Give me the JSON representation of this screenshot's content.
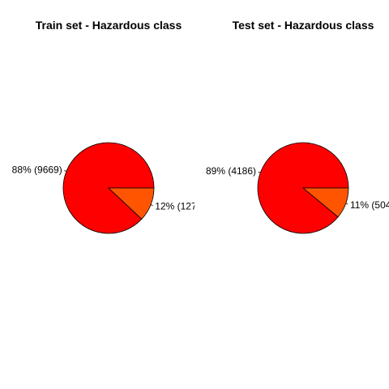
{
  "chart_data": [
    {
      "type": "pie",
      "title": "Train set - Hazardous class",
      "slices": [
        {
          "label": "88% (9669)",
          "percent": 88,
          "count": 9669,
          "color": "#FF0000"
        },
        {
          "label": "12% (127",
          "percent": 12,
          "count": null,
          "color": "#FF5500"
        }
      ]
    },
    {
      "type": "pie",
      "title": "Test set - Hazardous class",
      "slices": [
        {
          "label": "89% (4186)",
          "percent": 89,
          "count": 4186,
          "color": "#FF0000"
        },
        {
          "label": "11% (504",
          "percent": 11,
          "count": null,
          "color": "#FF5500"
        }
      ]
    }
  ]
}
